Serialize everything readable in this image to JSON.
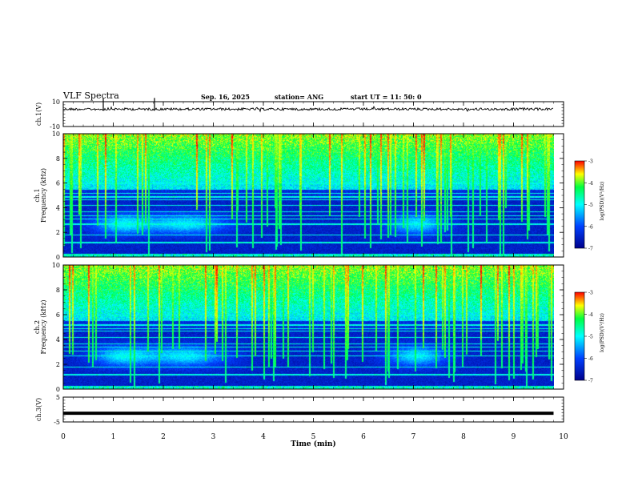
{
  "header": {
    "title": "VLF Spectra",
    "date": "Sep. 16, 2025",
    "station": "station= ANG",
    "start": "start  UT =   11: 50: 0"
  },
  "colors": {
    "lo": "#00008b",
    "mid": "#00bfff",
    "hi": "#ffff00",
    "top": "#ff0000",
    "trace": "#000000"
  },
  "chart_data": [
    {
      "type": "line",
      "id": "ch1",
      "ylabel": "ch.1(V)",
      "ylim": [
        -10,
        10
      ],
      "yticks": [
        "10",
        "-10"
      ],
      "x_range_min": [
        0,
        10
      ],
      "description_values": "noisy signal near +4 V"
    },
    {
      "type": "heatmap",
      "id": "ch1-spec",
      "ylabel_top": "ch.1",
      "ylabel": "Frequency (kHz)",
      "ylim": [
        0,
        10
      ],
      "yticks": [
        "0",
        "2",
        "4",
        "6",
        "8",
        "10"
      ],
      "colorbar": {
        "label": "log(PSD)(V²/Hz)",
        "ticks": [
          "-3",
          "-4",
          "-5",
          "-6",
          "-7"
        ],
        "range": [
          -7,
          -3
        ]
      }
    },
    {
      "type": "heatmap",
      "id": "ch2-spec",
      "ylabel_top": "ch.2",
      "ylabel": "Frequency (kHz)",
      "ylim": [
        0,
        10
      ],
      "yticks": [
        "0",
        "2",
        "4",
        "6",
        "8",
        "10"
      ],
      "colorbar": {
        "label": "log(PSD)(V²/Hz)",
        "ticks": [
          "-3",
          "-4",
          "-5",
          "-6",
          "-7"
        ],
        "range": [
          -7,
          -3
        ]
      }
    },
    {
      "type": "line",
      "id": "ch3",
      "ylabel": "ch.3(V)",
      "ylim": [
        -5,
        5
      ],
      "yticks": [
        "5",
        "-5"
      ],
      "value": -1.5
    }
  ],
  "xaxis": {
    "label": "Time (min)",
    "ticks": [
      "0",
      "1",
      "2",
      "3",
      "4",
      "5",
      "6",
      "7",
      "8",
      "9",
      "10"
    ],
    "range": [
      0,
      10
    ],
    "data_end": 9.8
  }
}
